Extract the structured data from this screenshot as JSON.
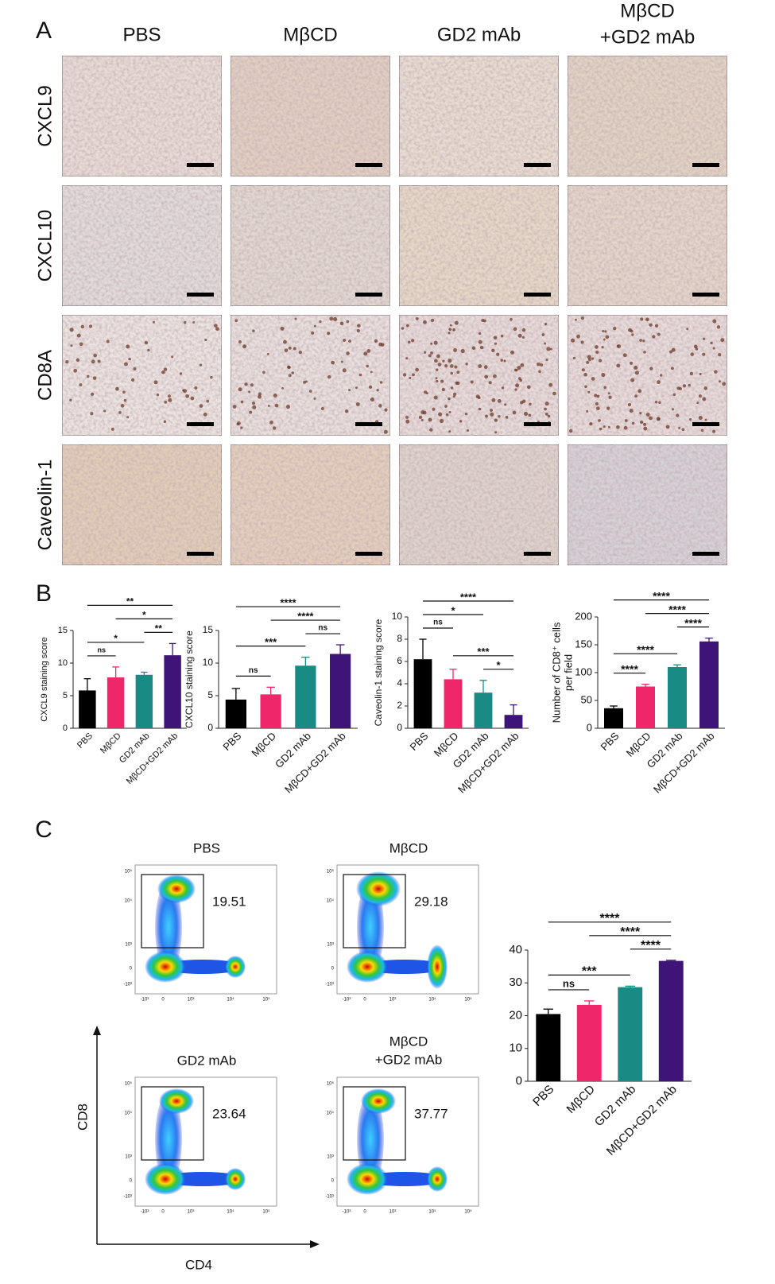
{
  "panel_a": {
    "label": "A",
    "columns": [
      [
        "PBS"
      ],
      [
        "MβCD"
      ],
      [
        "GD2 mAb"
      ],
      [
        "MβCD",
        "+GD2 mAb"
      ]
    ],
    "rows": [
      "CXCL9",
      "CXCL10",
      "CD8A",
      "Caveolin-1"
    ]
  },
  "panel_b": {
    "label": "B"
  },
  "panel_c": {
    "label": "C",
    "plots": [
      {
        "title": [
          "PBS"
        ],
        "gate": 19.51
      },
      {
        "title": [
          "MβCD"
        ],
        "gate": 29.18
      },
      {
        "title": [
          "GD2 mAb"
        ],
        "gate": 23.64
      },
      {
        "title": [
          "MβCD",
          "+GD2 mAb"
        ],
        "gate": 37.77
      }
    ],
    "ticks": [
      "-10³",
      "0",
      "10³",
      "10⁴",
      "10⁵"
    ],
    "x_label": "CD4",
    "y_label": "CD8"
  },
  "chart_data": [
    {
      "type": "bar",
      "ylabel": [
        "CXCL9 staining score"
      ],
      "categories": [
        "PBS",
        "MβCD",
        "GD2 mAb",
        "MβCD+GD2 mAb"
      ],
      "colors": [
        "#000000",
        "#f0266b",
        "#1a8a85",
        "#3f1478"
      ],
      "values": [
        5.8,
        7.8,
        8.2,
        11.2
      ],
      "errors": [
        1.8,
        1.6,
        0.4,
        1.8
      ],
      "ylim": [
        0,
        15
      ],
      "yticks": [
        0,
        5,
        10,
        15
      ],
      "annotations": [
        {
          "label": "ns",
          "groups": [
            0,
            1
          ]
        },
        {
          "label": "*",
          "groups": [
            0,
            2
          ]
        },
        {
          "label": "**",
          "groups": [
            2,
            3
          ]
        },
        {
          "label": "*",
          "groups": [
            1,
            3
          ]
        },
        {
          "label": "**",
          "groups": [
            0,
            3
          ]
        }
      ]
    },
    {
      "type": "bar",
      "ylabel": [
        "CXCL10 staining score"
      ],
      "categories": [
        "PBS",
        "MβCD",
        "GD2 mAb",
        "MβCD+GD2 mAb"
      ],
      "colors": [
        "#000000",
        "#f0266b",
        "#1a8a85",
        "#3f1478"
      ],
      "values": [
        4.4,
        5.2,
        9.6,
        11.4
      ],
      "errors": [
        1.7,
        1.1,
        1.3,
        1.4
      ],
      "ylim": [
        0,
        15
      ],
      "yticks": [
        0,
        5,
        10,
        15
      ],
      "annotations": [
        {
          "label": "ns",
          "groups": [
            0,
            1
          ]
        },
        {
          "label": "***",
          "groups": [
            0,
            2
          ]
        },
        {
          "label": "ns",
          "groups": [
            2,
            3
          ]
        },
        {
          "label": "****",
          "groups": [
            1,
            3
          ]
        },
        {
          "label": "****",
          "groups": [
            0,
            3
          ]
        }
      ]
    },
    {
      "type": "bar",
      "ylabel": [
        "Caveolin-1 staining score"
      ],
      "categories": [
        "PBS",
        "MβCD",
        "GD2 mAb",
        "MβCD+GD2 mAb"
      ],
      "colors": [
        "#000000",
        "#f0266b",
        "#1a8a85",
        "#3f1478"
      ],
      "values": [
        6.2,
        4.4,
        3.2,
        1.2
      ],
      "errors": [
        1.8,
        0.9,
        1.1,
        0.9
      ],
      "ylim": [
        0,
        10
      ],
      "yticks": [
        0,
        2,
        4,
        6,
        8,
        10
      ],
      "annotations": [
        {
          "label": "*",
          "groups": [
            2,
            3
          ]
        },
        {
          "label": "***",
          "groups": [
            1,
            3
          ]
        },
        {
          "label": "ns",
          "groups": [
            0,
            1
          ]
        },
        {
          "label": "*",
          "groups": [
            0,
            2
          ]
        },
        {
          "label": "****",
          "groups": [
            0,
            3
          ]
        }
      ]
    },
    {
      "type": "bar",
      "ylabel": [
        "Number of CD8⁺ cells",
        "per field"
      ],
      "categories": [
        "PBS",
        "MβCD",
        "GD2 mAb",
        "MβCD+GD2 mAb"
      ],
      "colors": [
        "#000000",
        "#f0266b",
        "#1a8a85",
        "#3f1478"
      ],
      "values": [
        36,
        75,
        110,
        156
      ],
      "errors": [
        4,
        4,
        4,
        6
      ],
      "ylim": [
        0,
        200
      ],
      "yticks": [
        0,
        50,
        100,
        150,
        200
      ],
      "annotations": [
        {
          "label": "****",
          "groups": [
            0,
            1
          ]
        },
        {
          "label": "****",
          "groups": [
            0,
            2
          ]
        },
        {
          "label": "****",
          "groups": [
            2,
            3
          ]
        },
        {
          "label": "****",
          "groups": [
            1,
            3
          ]
        },
        {
          "label": "****",
          "groups": [
            0,
            3
          ]
        }
      ]
    },
    {
      "type": "bar",
      "categories": [
        "PBS",
        "MβCD",
        "GD2 mAb",
        "MβCD+GD2 mAb"
      ],
      "colors": [
        "#000000",
        "#f0266b",
        "#1a8a85",
        "#3f1478"
      ],
      "values": [
        20.5,
        23.3,
        28.7,
        36.7
      ],
      "errors": [
        1.5,
        1.2,
        0.3,
        0.2
      ],
      "ylim": [
        0,
        40
      ],
      "yticks": [
        0,
        10,
        20,
        30,
        40
      ],
      "annotations": [
        {
          "label": "ns",
          "groups": [
            0,
            1
          ]
        },
        {
          "label": "***",
          "groups": [
            0,
            2
          ]
        },
        {
          "label": "****",
          "groups": [
            2,
            3
          ]
        },
        {
          "label": "****",
          "groups": [
            1,
            3
          ]
        },
        {
          "label": "****",
          "groups": [
            0,
            3
          ]
        }
      ]
    }
  ]
}
